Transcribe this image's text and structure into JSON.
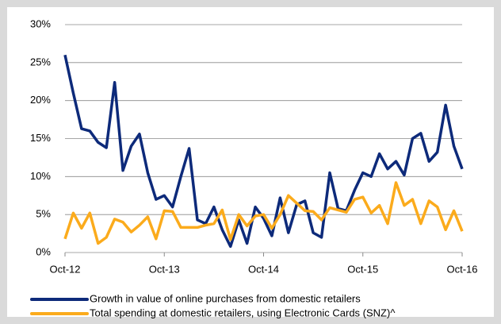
{
  "chart_data": {
    "type": "line",
    "categories": [
      "Oct-12",
      null,
      null,
      null,
      null,
      null,
      null,
      null,
      null,
      null,
      null,
      null,
      "Oct-13",
      null,
      null,
      null,
      null,
      null,
      null,
      null,
      null,
      null,
      null,
      null,
      "Oct-14",
      null,
      null,
      null,
      null,
      null,
      null,
      null,
      null,
      null,
      null,
      null,
      "Oct-15",
      null,
      null,
      null,
      null,
      null,
      null,
      null,
      null,
      null,
      null,
      null,
      "Oct-16"
    ],
    "series": [
      {
        "name": "Growth in value of online purchases from domestic retailers",
        "color": "#0d2a7a",
        "values": [
          26,
          21,
          16.3,
          16,
          14.5,
          13.8,
          22.4,
          10.8,
          14,
          15.6,
          10.5,
          7,
          7.5,
          6,
          10,
          13.7,
          4.3,
          3.8,
          6,
          3,
          0.8,
          4.3,
          1.2,
          6,
          4.5,
          2.2,
          7.2,
          2.6,
          6.3,
          6.8,
          2.6,
          2,
          10.5,
          5.8,
          5.5,
          8.2,
          10.5,
          10,
          13,
          11,
          12,
          10.2,
          15,
          15.7,
          12,
          13.2,
          19.4,
          14,
          11
        ]
      },
      {
        "name": "Total spending at domestic retailers, using Electronic Cards (SNZ)^",
        "color": "#fbab1c",
        "values": [
          1.8,
          5.2,
          3.2,
          5.2,
          1.2,
          2,
          4.4,
          4,
          2.7,
          3.6,
          4.7,
          1.8,
          5.5,
          5.4,
          3.3,
          3.3,
          3.3,
          3.6,
          3.8,
          5.6,
          1.7,
          5,
          3.5,
          4.8,
          5,
          3.2,
          5,
          7.5,
          6.5,
          5.5,
          5.4,
          4.3,
          5.9,
          5.6,
          5.3,
          7,
          7.3,
          5.2,
          6.2,
          3.8,
          9.2,
          6.2,
          7,
          3.8,
          6.8,
          6,
          3,
          5.5,
          2.8
        ]
      }
    ],
    "ylim": [
      0,
      30
    ],
    "yticks": [
      {
        "value": 0,
        "label": "0%"
      },
      {
        "value": 5,
        "label": "5%"
      },
      {
        "value": 10,
        "label": "10%"
      },
      {
        "value": 15,
        "label": "15%"
      },
      {
        "value": 20,
        "label": "20%"
      },
      {
        "value": 25,
        "label": "25%"
      },
      {
        "value": 30,
        "label": "30%"
      }
    ],
    "grid": true,
    "legend": "bottom"
  }
}
